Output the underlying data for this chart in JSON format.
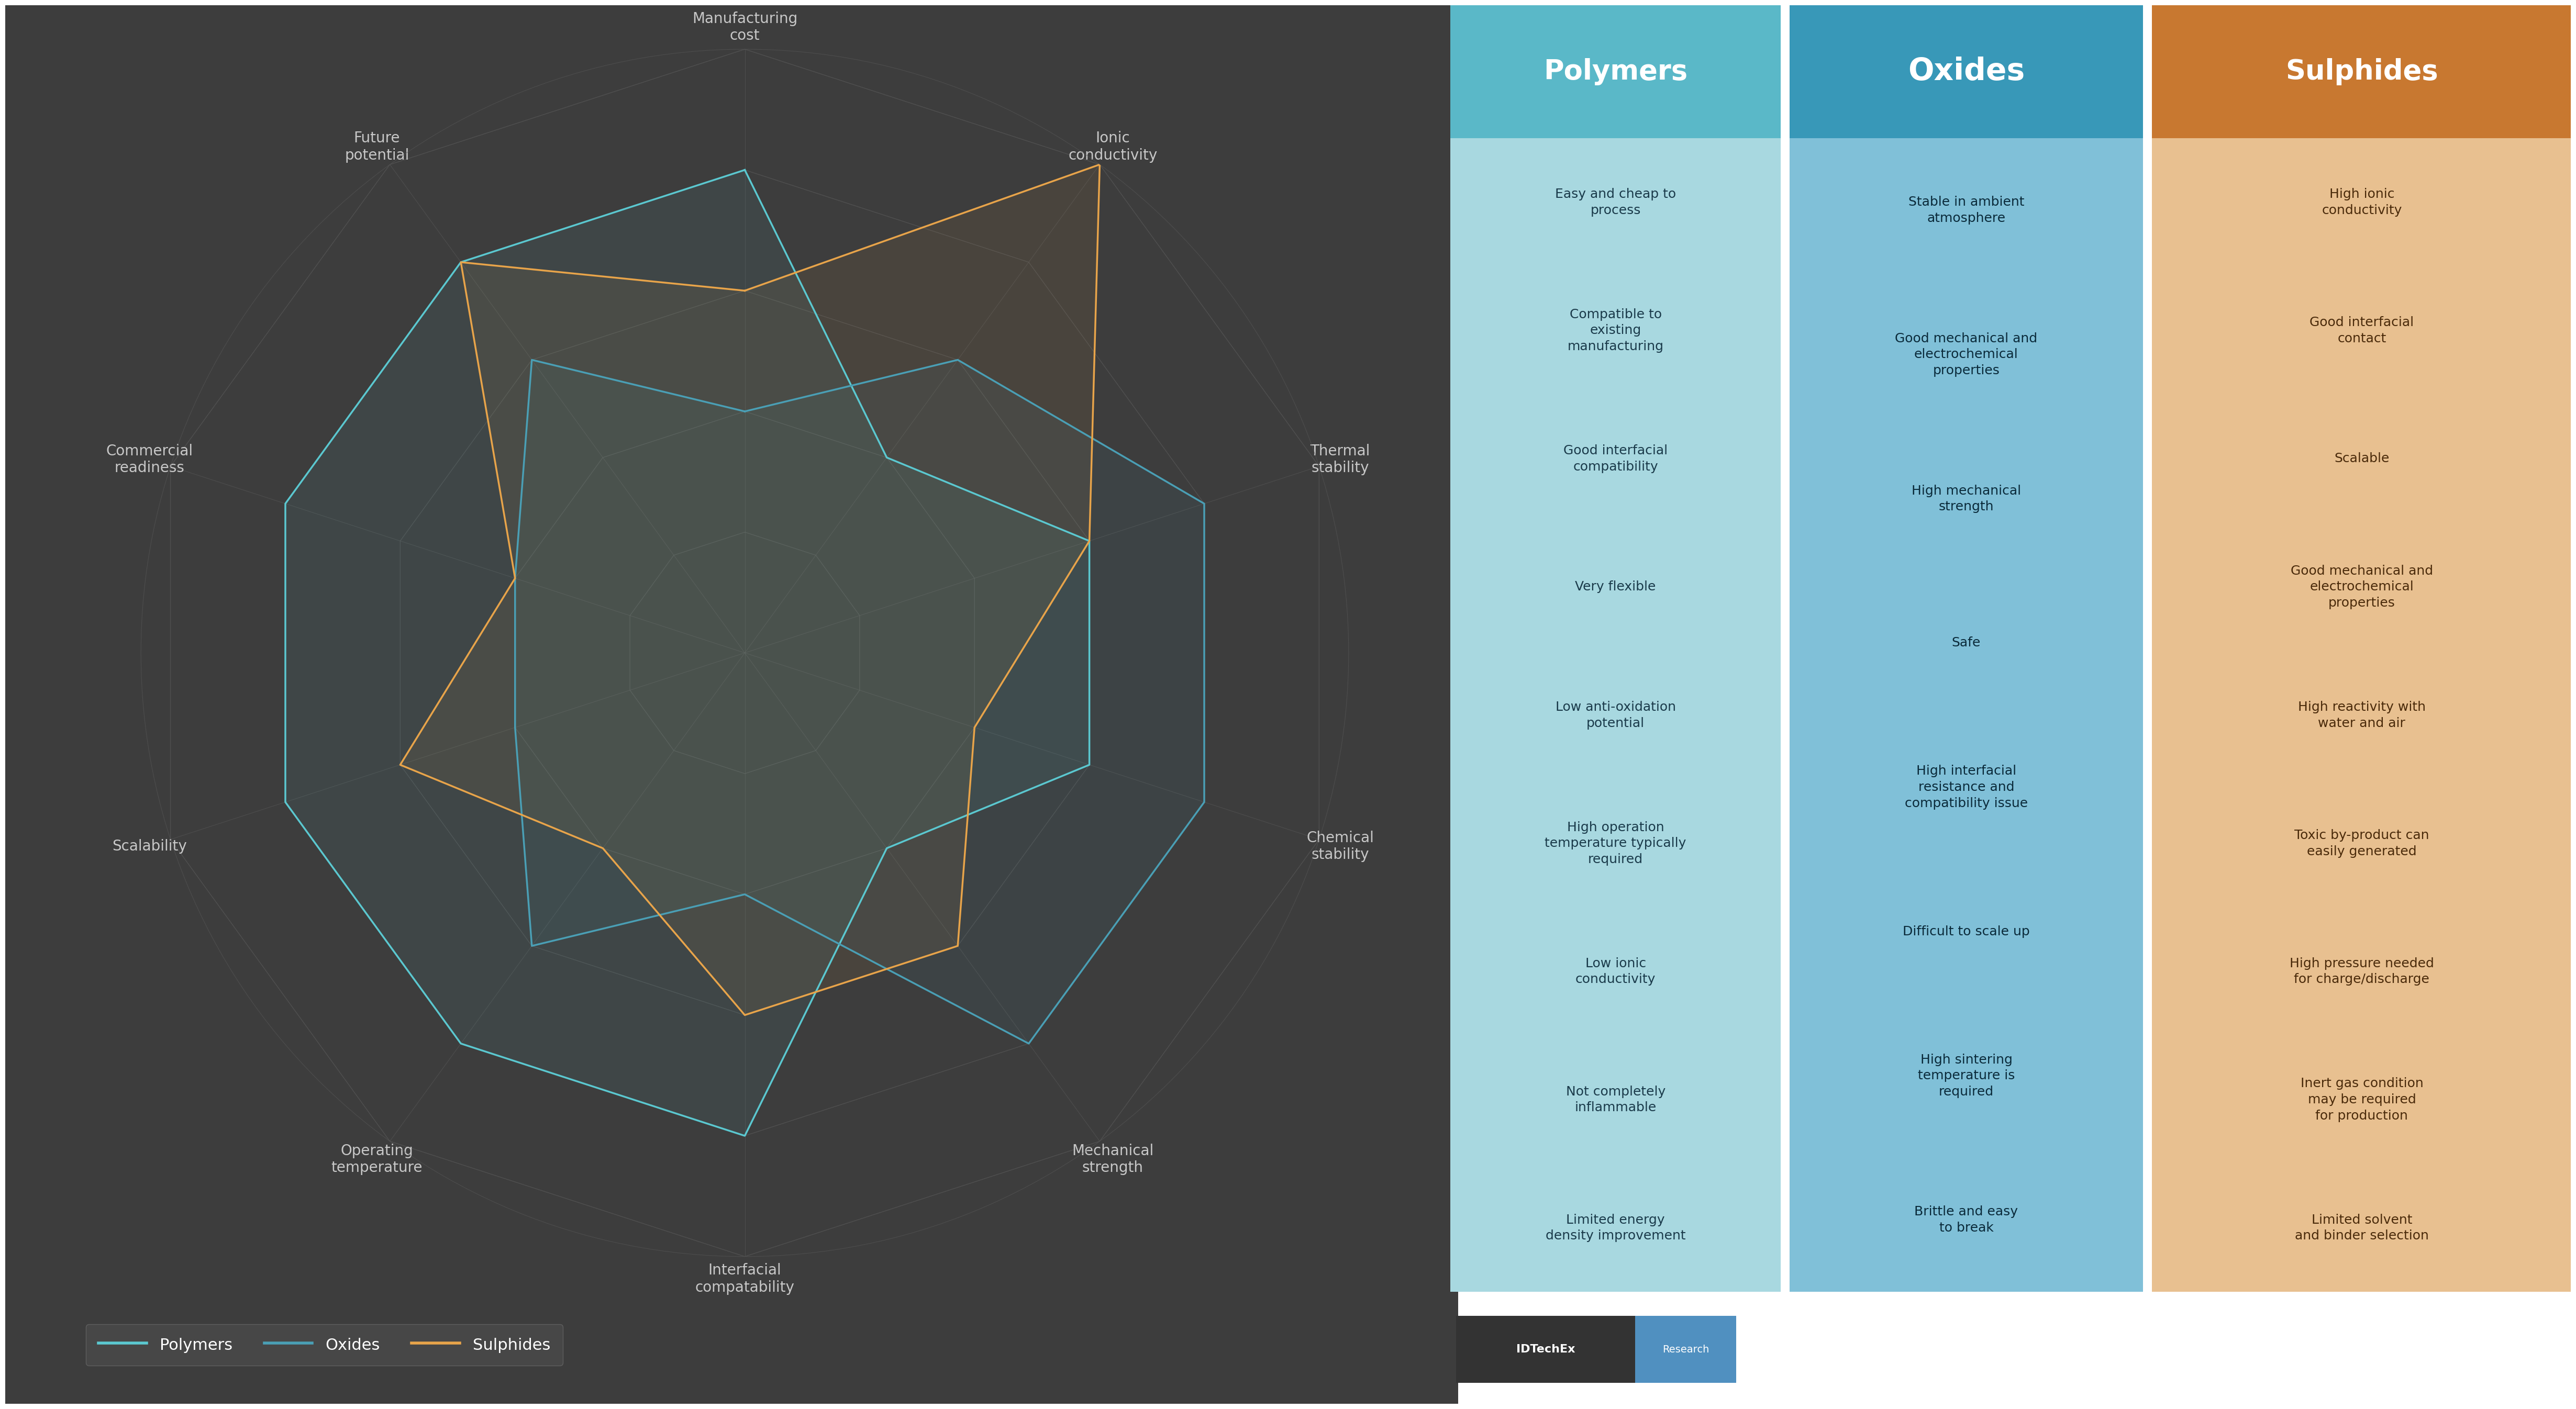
{
  "radar_categories": [
    "Manufacturing\ncost",
    "Ionic\nconductivity",
    "Thermal\nstability",
    "Chemical\nstability",
    "Mechanical\nstrength",
    "Interfacial\ncompatability",
    "Operating\ntemperature",
    "Scalability",
    "Commercial\nreadiness",
    "Future\npotential"
  ],
  "polymers_values": [
    4,
    2,
    3,
    3,
    2,
    4,
    4,
    4,
    4,
    4
  ],
  "oxides_values": [
    2,
    3,
    4,
    4,
    4,
    2,
    3,
    2,
    2,
    3
  ],
  "sulphides_values": [
    3,
    5,
    3,
    2,
    3,
    3,
    2,
    3,
    2,
    4
  ],
  "polymers_color": "#5bc8d0",
  "oxides_color": "#4a9fb5",
  "sulphides_color": "#e8a44a",
  "radar_bg_color": "#3d3d3d",
  "radar_grid_color": "#585858",
  "radar_label_color": "#c8c8c8",
  "radar_max": 5,
  "polymers_label": "Polymers",
  "oxides_label": "Oxides",
  "sulphides_label": "Sulphides",
  "col_bg_polymers": "#a8d8e0",
  "col_bg_oxides": "#80c0d8",
  "col_bg_sulphides": "#e8c090",
  "header_bg_polymers": "#5ab8c8",
  "header_bg_oxides": "#3898b8",
  "header_bg_sulphides": "#c87830",
  "table_text_color": "#1a3a4a",
  "polymers_items": [
    "Easy and cheap to\nprocess",
    "Compatible to\nexisting\nmanufacturing",
    "Good interfacial\ncompatibility",
    "Very flexible",
    "Low anti-oxidation\npotential",
    "High operation\ntemperature typically\nrequired",
    "Low ionic\nconductivity",
    "Not completely\ninflammable",
    "Limited energy\ndensity improvement"
  ],
  "oxides_items": [
    "Stable in ambient\natmosphere",
    "Good mechanical and\nelectrochemical\nproperties",
    "High mechanical\nstrength",
    "Safe",
    "High interfacial\nresistance and\ncompatibility issue",
    "Difficult to scale up",
    "High sintering\ntemperature is\nrequired",
    "Brittle and easy\nto break"
  ],
  "sulphides_items": [
    "High ionic\nconductivity",
    "Good interfacial\ncontact",
    "Scalable",
    "Good mechanical and\nelectrochemical\nproperties",
    "High reactivity with\nwater and air",
    "Toxic by-product can\neasily generated",
    "High pressure needed\nfor charge/discharge",
    "Inert gas condition\nmay be required\nfor production",
    "Limited solvent\nand binder selection"
  ],
  "outer_bg": "#ffffff",
  "left_bg": "#3d3d3d",
  "legend_bg": "#4a4a4a",
  "legend_edge": "#666666",
  "idtechex_bg": "#333333",
  "research_bg": "#5090c0"
}
